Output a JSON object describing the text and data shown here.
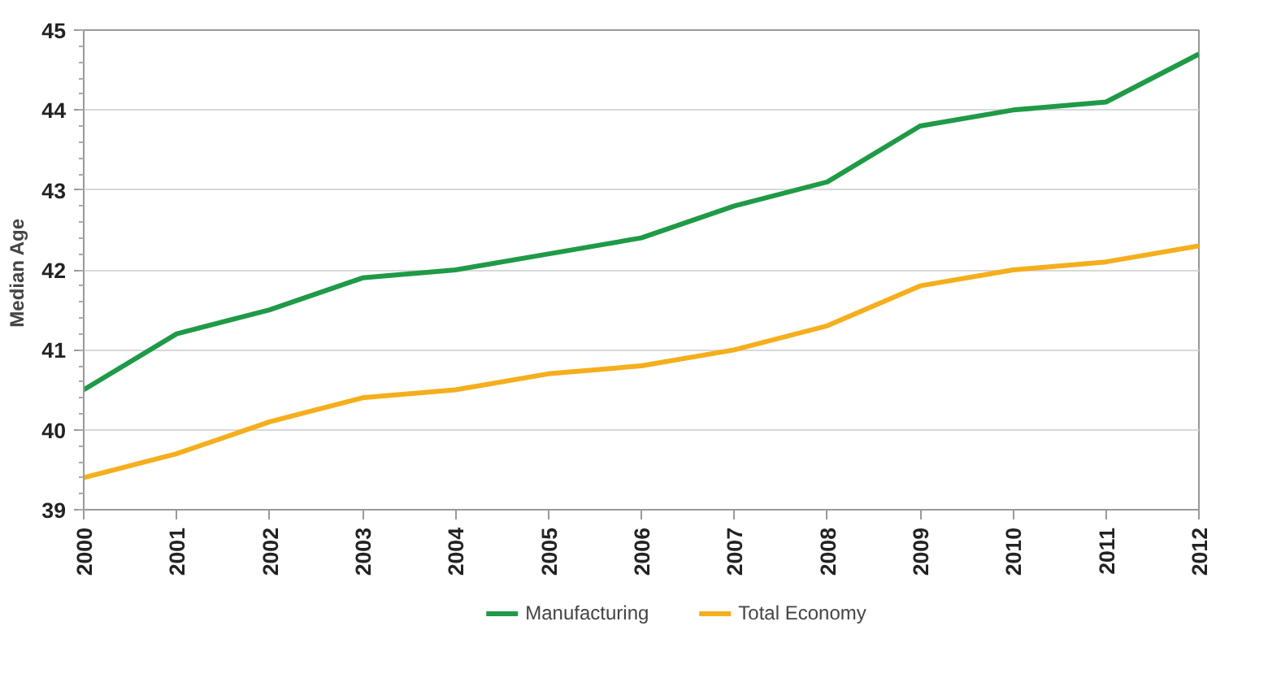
{
  "chart_data": {
    "type": "line",
    "ylabel": "Median  Age",
    "categories": [
      "2000",
      "2001",
      "2002",
      "2003",
      "2004",
      "2005",
      "2006",
      "2007",
      "2008",
      "2009",
      "2010",
      "2011",
      "2012"
    ],
    "series": [
      {
        "name": "Manufacturing",
        "color": "#1f9a47",
        "values": [
          40.5,
          41.2,
          41.5,
          41.9,
          42.0,
          42.2,
          42.4,
          42.8,
          43.1,
          43.8,
          44.0,
          44.1,
          44.7
        ]
      },
      {
        "name": "Total Economy",
        "color": "#f5ae1c",
        "values": [
          39.4,
          39.7,
          40.1,
          40.4,
          40.5,
          40.7,
          40.8,
          41.0,
          41.3,
          41.8,
          42.0,
          42.1,
          42.3
        ]
      }
    ],
    "ylim": [
      39,
      45
    ],
    "yticks": [
      39,
      40,
      41,
      42,
      43,
      44,
      45
    ],
    "grid": "y",
    "legend": "bottom",
    "marker": "none",
    "line_style": "solid"
  }
}
